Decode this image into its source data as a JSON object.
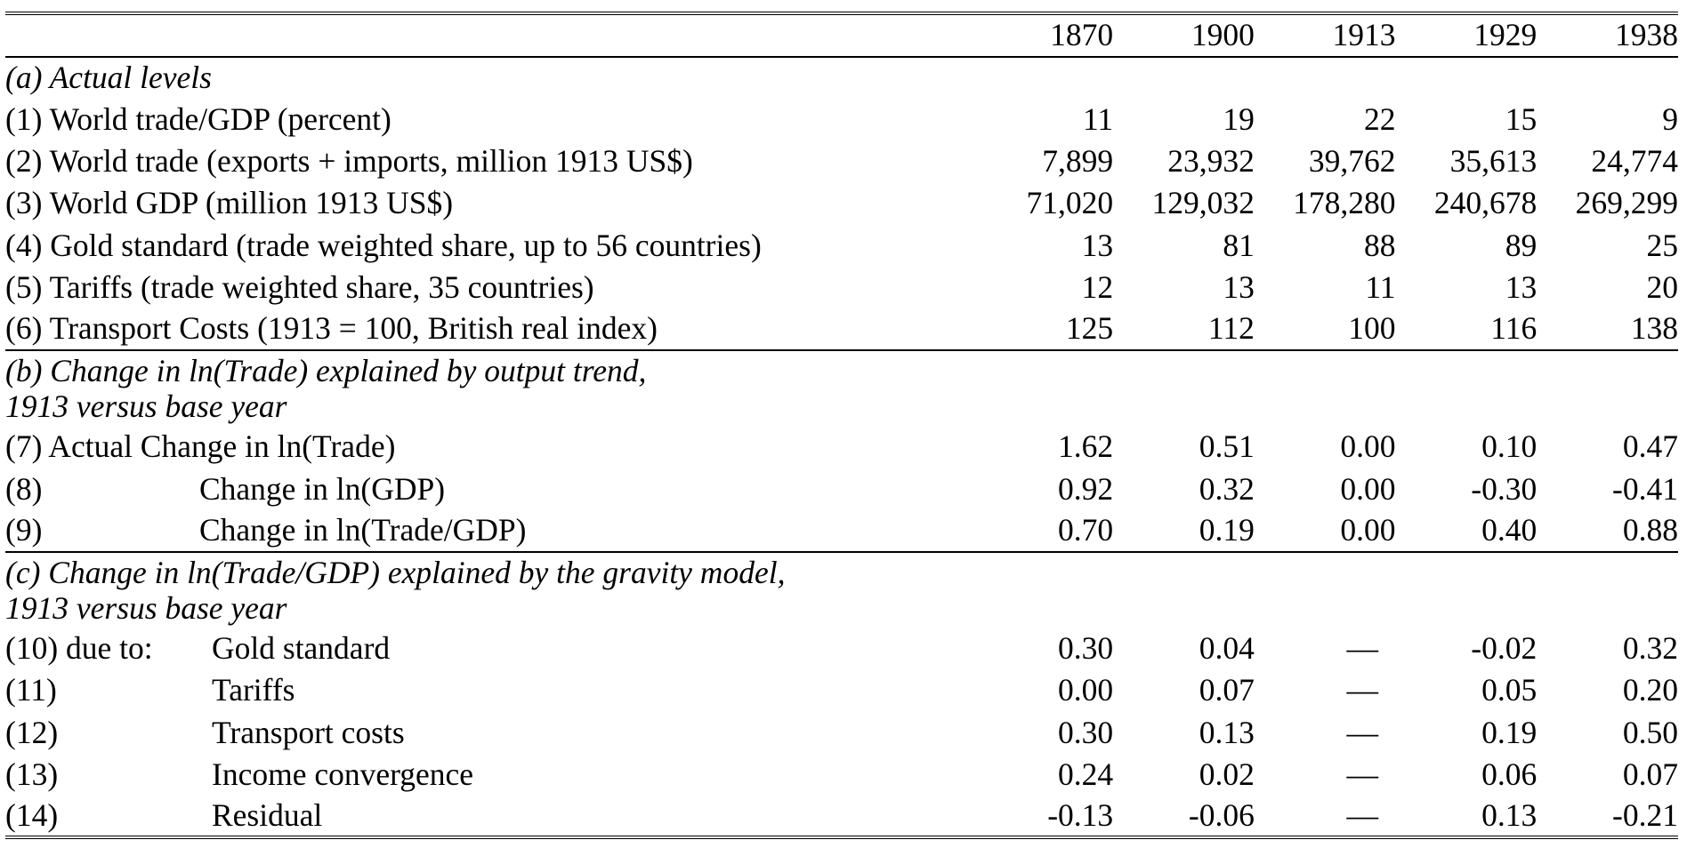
{
  "years": [
    "1870",
    "1900",
    "1913",
    "1929",
    "1938"
  ],
  "section_a": {
    "title": "(a) Actual levels",
    "rows": [
      {
        "label": "(1) World trade/GDP (percent)",
        "values": [
          "11",
          "19",
          "22",
          "15",
          "9"
        ]
      },
      {
        "label": "(2) World trade (exports + imports, million 1913 US$)",
        "values": [
          "7,899",
          "23,932",
          "39,762",
          "35,613",
          "24,774"
        ]
      },
      {
        "label": "(3) World GDP (million 1913 US$)",
        "values": [
          "71,020",
          "129,032",
          "178,280",
          "240,678",
          "269,299"
        ]
      },
      {
        "label": "(4) Gold standard (trade weighted share, up to 56 countries)",
        "values": [
          "13",
          "81",
          "88",
          "89",
          "25"
        ]
      },
      {
        "label": "(5) Tariffs (trade weighted share, 35 countries)",
        "values": [
          "12",
          "13",
          "11",
          "13",
          "20"
        ]
      },
      {
        "label": "(6) Transport Costs (1913 = 100, British real index)",
        "values": [
          "125",
          "112",
          "100",
          "116",
          "138"
        ]
      }
    ]
  },
  "section_b": {
    "title_line1": "(b) Change in ln(Trade) explained by output trend,",
    "title_line2": "1913 versus base year",
    "rows": [
      {
        "label": "(7) Actual Change in ln(Trade)",
        "values": [
          "1.62",
          "0.51",
          "0.00",
          "0.10",
          "0.47"
        ]
      },
      {
        "index": "(8)",
        "label": "Change in ln(GDP)",
        "values": [
          "0.92",
          "0.32",
          "0.00",
          "-0.30",
          "-0.41"
        ]
      },
      {
        "index": "(9)",
        "label": "Change in ln(Trade/GDP)",
        "values": [
          "0.70",
          "0.19",
          "0.00",
          "0.40",
          "0.88"
        ]
      }
    ]
  },
  "section_c": {
    "title_line1": "(c) Change in ln(Trade/GDP) explained by the gravity model,",
    "title_line2": "1913 versus base year",
    "rows": [
      {
        "index": "(10) due to:",
        "label": "Gold standard",
        "values": [
          "0.30",
          "0.04",
          "—",
          "-0.02",
          "0.32"
        ]
      },
      {
        "index": "(11)",
        "label": "Tariffs",
        "values": [
          "0.00",
          "0.07",
          "—",
          "0.05",
          "0.20"
        ]
      },
      {
        "index": "(12)",
        "label": "Transport costs",
        "values": [
          "0.30",
          "0.13",
          "—",
          "0.19",
          "0.50"
        ]
      },
      {
        "index": "(13)",
        "label": "Income convergence",
        "values": [
          "0.24",
          "0.02",
          "—",
          "0.06",
          "0.07"
        ]
      },
      {
        "index": "(14)",
        "label": "Residual",
        "values": [
          "-0.13",
          "-0.06",
          "—",
          "0.13",
          "-0.21"
        ]
      }
    ]
  }
}
